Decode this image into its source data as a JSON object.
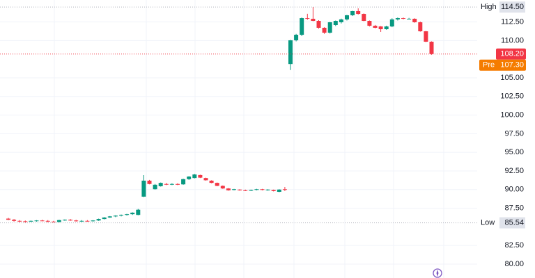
{
  "chart_data": {
    "type": "candlestick",
    "up_color": "#089981",
    "down_color": "#f23645",
    "grid": true,
    "ylim": [
      78.13,
      115.45
    ],
    "yticks": [
      {
        "value": 80,
        "label": "80.00"
      },
      {
        "value": 82.5,
        "label": "82.50"
      },
      {
        "value": 87.5,
        "label": "87.50"
      },
      {
        "value": 90,
        "label": "90.00"
      },
      {
        "value": 92.5,
        "label": "92.50"
      },
      {
        "value": 95,
        "label": "95.00"
      },
      {
        "value": 97.5,
        "label": "97.50"
      },
      {
        "value": 100,
        "label": "100.00"
      },
      {
        "value": 102.5,
        "label": "102.50"
      },
      {
        "value": 105,
        "label": "105.00"
      },
      {
        "value": 110,
        "label": "110.00"
      },
      {
        "value": 112.5,
        "label": "112.50"
      }
    ],
    "open": [
      86.1,
      85.95,
      85.8,
      85.75,
      85.7,
      85.8,
      85.85,
      85.8,
      85.7,
      85.65,
      85.9,
      85.95,
      85.85,
      85.75,
      85.8,
      85.75,
      85.85,
      86.05,
      86.25,
      86.4,
      86.5,
      86.6,
      86.7,
      86.6,
      89.05,
      91.2,
      90.05,
      90.45,
      90.75,
      90.7,
      90.75,
      90.7,
      91.4,
      91.55,
      91.95,
      91.55,
      91.2,
      90.9,
      90.5,
      90.15,
      89.95,
      90.0,
      89.9,
      89.85,
      89.95,
      90.05,
      89.95,
      89.95,
      89.7,
      90.05,
      106.85,
      110.04,
      110.78,
      113.02,
      112.93,
      112.65,
      111.72,
      111.06,
      112.09,
      112.46,
      112.84,
      113.4,
      113.96,
      113.58,
      112.65,
      111.99,
      111.9,
      111.53,
      111.9,
      112.84,
      113.02,
      112.93,
      112.93,
      112.46,
      111.25,
      109.85
    ],
    "high": [
      86.2,
      86.05,
      85.9,
      85.85,
      85.85,
      85.9,
      85.95,
      85.9,
      85.8,
      85.95,
      86.0,
      86.05,
      85.95,
      85.9,
      85.9,
      85.9,
      86.1,
      86.3,
      86.45,
      86.55,
      86.65,
      86.75,
      86.95,
      87.4,
      91.94,
      91.3,
      90.75,
      90.95,
      90.9,
      90.85,
      90.85,
      91.45,
      91.8,
      92.1,
      92.0,
      91.6,
      91.25,
      90.95,
      90.55,
      90.2,
      90.1,
      90.05,
      90.0,
      90.0,
      90.1,
      90.1,
      90.05,
      90.0,
      90.05,
      90.35,
      110.1,
      110.9,
      113.1,
      113.6,
      114.5,
      112.75,
      111.8,
      112.5,
      112.7,
      112.95,
      113.45,
      114.0,
      114.33,
      113.65,
      112.7,
      112.1,
      111.95,
      112.0,
      113.0,
      113.1,
      113.1,
      113.05,
      113.0,
      112.55,
      111.3,
      109.9
    ],
    "low": [
      85.9,
      85.7,
      85.6,
      85.54,
      85.65,
      85.7,
      85.75,
      85.6,
      85.6,
      85.6,
      85.8,
      85.8,
      85.7,
      85.65,
      85.7,
      85.7,
      85.8,
      86.0,
      86.2,
      86.3,
      86.4,
      86.5,
      86.6,
      86.55,
      89.0,
      90.7,
      90.0,
      90.4,
      90.6,
      90.6,
      90.6,
      90.65,
      91.3,
      91.5,
      91.55,
      91.2,
      90.85,
      90.45,
      90.1,
      89.85,
      89.9,
      89.85,
      89.8,
      89.8,
      89.9,
      89.9,
      89.85,
      89.75,
      89.65,
      89.8,
      106.05,
      109.9,
      110.6,
      112.8,
      112.6,
      111.6,
      110.9,
      110.95,
      111.95,
      112.3,
      112.7,
      113.3,
      113.5,
      112.6,
      111.9,
      111.65,
      111.16,
      111.45,
      111.8,
      112.7,
      112.85,
      112.85,
      112.4,
      111.2,
      109.8,
      108.1
    ],
    "close": [
      85.95,
      85.8,
      85.75,
      85.7,
      85.8,
      85.85,
      85.8,
      85.7,
      85.65,
      85.9,
      85.95,
      85.85,
      85.75,
      85.8,
      85.75,
      85.85,
      86.05,
      86.25,
      86.4,
      86.5,
      86.6,
      86.7,
      86.9,
      87.3,
      91.2,
      90.75,
      90.65,
      90.9,
      90.7,
      90.75,
      90.65,
      91.4,
      91.75,
      92.03,
      91.6,
      91.25,
      90.9,
      90.5,
      90.15,
      89.9,
      90.05,
      89.9,
      89.85,
      89.95,
      90.05,
      89.95,
      90.0,
      89.8,
      90.0,
      90.0,
      110.04,
      110.78,
      113.02,
      112.93,
      112.65,
      111.72,
      111.06,
      112.46,
      112.65,
      112.84,
      113.4,
      113.96,
      113.58,
      112.65,
      111.99,
      111.72,
      111.53,
      111.9,
      112.84,
      113.02,
      112.93,
      112.93,
      112.46,
      111.25,
      109.85,
      108.2
    ],
    "high_marker": {
      "label": "High",
      "value": 114.5,
      "value_label": "114.50"
    },
    "low_marker": {
      "label": "Low",
      "value": 85.54,
      "value_label": "85.54"
    },
    "last_price": {
      "value": 108.2,
      "value_label": "108.20",
      "color": "#f23645"
    },
    "pre_market": {
      "label": "Pre",
      "value": 107.3,
      "value_label": "107.30",
      "color": "#f57c00"
    }
  }
}
